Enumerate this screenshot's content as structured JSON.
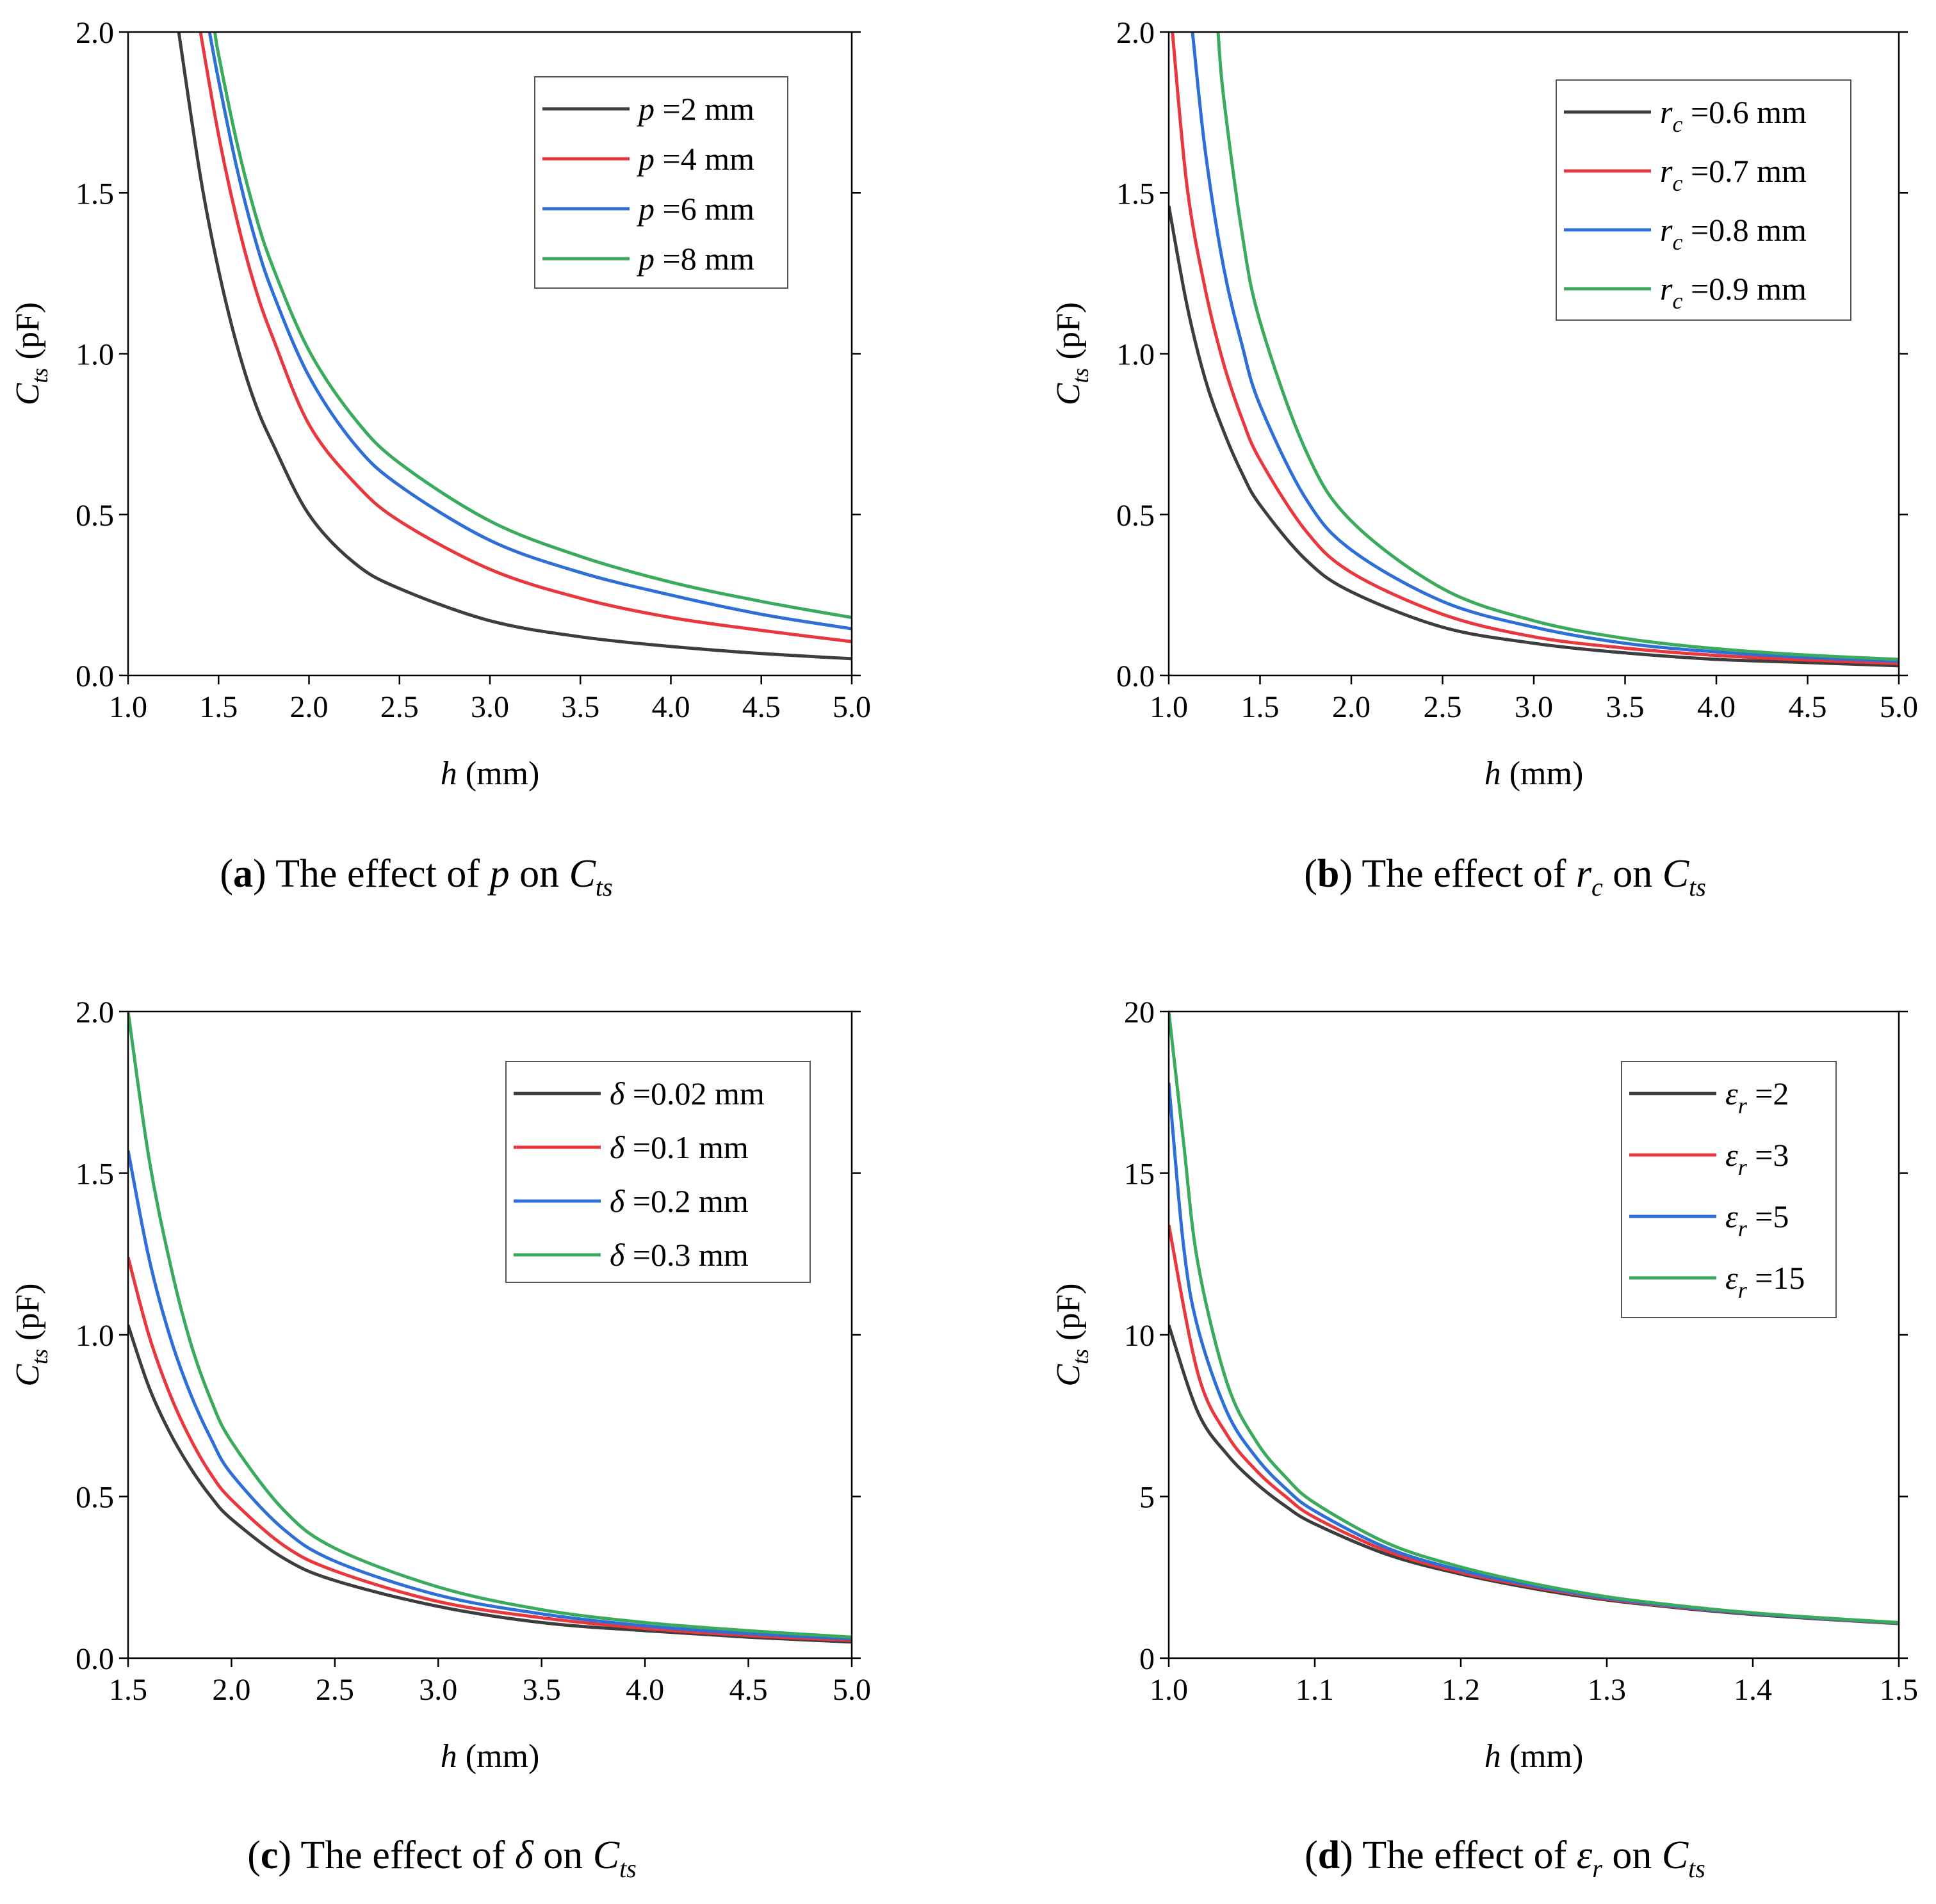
{
  "panels": [
    {
      "id": "a",
      "type": "line",
      "x_range": [
        1.0,
        5.0
      ],
      "y_range": [
        0,
        2.0
      ],
      "x_ticks": [
        "1.0",
        "1.5",
        "2.0",
        "2.5",
        "3.0",
        "3.5",
        "4.0",
        "4.5",
        "5.0"
      ],
      "y_ticks": [
        "0.0",
        "0.5",
        "1.0",
        "1.5",
        "2.0"
      ],
      "x_tick_values": [
        1.0,
        1.5,
        2.0,
        2.5,
        3.0,
        3.5,
        4.0,
        4.5,
        5.0
      ],
      "y_tick_values": [
        0,
        0.5,
        1.0,
        1.5,
        2.0
      ],
      "xlabel": {
        "var": "h",
        "unit": "(mm)"
      },
      "ylabel": {
        "var": "C",
        "sub": "ts",
        "unit": "(pF)"
      },
      "legend": {
        "position": "top-right",
        "entries": [
          {
            "var": "p",
            "sub": "",
            "value": "=2 mm",
            "color": "#3d3d3d"
          },
          {
            "var": "p",
            "sub": "",
            "value": "=4 mm",
            "color": "#e8383d"
          },
          {
            "var": "p",
            "sub": "",
            "value": "=6 mm",
            "color": "#2d6fd6"
          },
          {
            "var": "p",
            "sub": "",
            "value": "=8 mm",
            "color": "#3aaa5c"
          }
        ]
      },
      "series": [
        {
          "name": "p =2 mm",
          "x": [
            1.28,
            1.4,
            1.5,
            1.6,
            1.7,
            1.8,
            2.0,
            2.25,
            2.5,
            3.0,
            3.5,
            4.0,
            4.5,
            5.0
          ],
          "y": [
            2.0,
            1.55,
            1.26,
            1.03,
            0.85,
            0.72,
            0.5,
            0.35,
            0.27,
            0.17,
            0.12,
            0.09,
            0.068,
            0.052
          ]
        },
        {
          "name": "p =4 mm",
          "x": [
            1.4,
            1.5,
            1.6,
            1.7,
            1.8,
            2.0,
            2.25,
            2.5,
            3.0,
            3.5,
            4.0,
            4.5,
            5.0
          ],
          "y": [
            2.0,
            1.68,
            1.42,
            1.21,
            1.05,
            0.78,
            0.6,
            0.48,
            0.33,
            0.24,
            0.18,
            0.14,
            0.105
          ]
        },
        {
          "name": "p =6 mm",
          "x": [
            1.45,
            1.5,
            1.6,
            1.7,
            1.8,
            2.0,
            2.25,
            2.5,
            3.0,
            3.5,
            4.0,
            4.5,
            5.0
          ],
          "y": [
            2.0,
            1.85,
            1.58,
            1.36,
            1.19,
            0.93,
            0.72,
            0.59,
            0.42,
            0.32,
            0.25,
            0.19,
            0.145
          ]
        },
        {
          "name": "p =8 mm",
          "x": [
            1.48,
            1.5,
            1.6,
            1.7,
            1.8,
            2.0,
            2.25,
            2.5,
            3.0,
            3.5,
            4.0,
            4.5,
            5.0
          ],
          "y": [
            2.0,
            1.93,
            1.66,
            1.44,
            1.27,
            1.01,
            0.8,
            0.66,
            0.48,
            0.37,
            0.29,
            0.23,
            0.18
          ]
        }
      ],
      "caption": {
        "label": "a",
        "text": "The effect of",
        "var": "p",
        "on": "on",
        "target": "C",
        "target_sub": "ts"
      }
    },
    {
      "id": "b",
      "type": "line",
      "x_range": [
        1.0,
        5.0
      ],
      "y_range": [
        0,
        2.0
      ],
      "x_ticks": [
        "1.0",
        "1.5",
        "2.0",
        "2.5",
        "3.0",
        "3.5",
        "4.0",
        "4.5",
        "5.0"
      ],
      "y_ticks": [
        "0.0",
        "0.5",
        "1.0",
        "1.5",
        "2.0"
      ],
      "x_tick_values": [
        1.0,
        1.5,
        2.0,
        2.5,
        3.0,
        3.5,
        4.0,
        4.5,
        5.0
      ],
      "y_tick_values": [
        0,
        0.5,
        1.0,
        1.5,
        2.0
      ],
      "xlabel": {
        "var": "h",
        "unit": "(mm)"
      },
      "ylabel": {
        "var": "C",
        "sub": "ts",
        "unit": "(pF)"
      },
      "legend": {
        "position": "top-right",
        "entries": [
          {
            "var": "r",
            "sub": "c",
            "value": "=0.6 mm",
            "color": "#3d3d3d"
          },
          {
            "var": "r",
            "sub": "c",
            "value": "=0.7 mm",
            "color": "#e8383d"
          },
          {
            "var": "r",
            "sub": "c",
            "value": "=0.8 mm",
            "color": "#2d6fd6"
          },
          {
            "var": "r",
            "sub": "c",
            "value": "=0.9 mm",
            "color": "#3aaa5c"
          }
        ]
      },
      "series": [
        {
          "name": "rc =0.6 mm",
          "x": [
            1.0,
            1.1,
            1.2,
            1.3,
            1.4,
            1.5,
            1.75,
            2.0,
            2.5,
            3.0,
            3.5,
            4.0,
            4.5,
            5.0
          ],
          "y": [
            1.46,
            1.15,
            0.92,
            0.76,
            0.63,
            0.53,
            0.36,
            0.26,
            0.15,
            0.1,
            0.07,
            0.05,
            0.04,
            0.03
          ]
        },
        {
          "name": "rc =0.7 mm",
          "x": [
            1.02,
            1.1,
            1.2,
            1.3,
            1.4,
            1.5,
            1.75,
            2.0,
            2.5,
            3.0,
            3.5,
            4.0,
            4.5,
            5.0
          ],
          "y": [
            2.0,
            1.52,
            1.2,
            0.97,
            0.8,
            0.67,
            0.45,
            0.32,
            0.19,
            0.12,
            0.085,
            0.062,
            0.048,
            0.037
          ]
        },
        {
          "name": "rc =0.8 mm",
          "x": [
            1.13,
            1.2,
            1.3,
            1.4,
            1.5,
            1.75,
            2.0,
            2.5,
            3.0,
            3.5,
            4.0,
            4.5,
            5.0
          ],
          "y": [
            2.0,
            1.63,
            1.27,
            1.03,
            0.84,
            0.55,
            0.39,
            0.23,
            0.15,
            0.1,
            0.073,
            0.056,
            0.044
          ]
        },
        {
          "name": "rc =0.9 mm",
          "x": [
            1.27,
            1.3,
            1.4,
            1.5,
            1.75,
            2.0,
            2.5,
            3.0,
            3.5,
            4.0,
            4.5,
            5.0
          ],
          "y": [
            2.0,
            1.8,
            1.38,
            1.1,
            0.7,
            0.48,
            0.27,
            0.17,
            0.115,
            0.083,
            0.063,
            0.05
          ]
        }
      ],
      "caption": {
        "label": "b",
        "text": "The effect of",
        "var": "r",
        "var_sub": "c",
        "on": "on",
        "target": "C",
        "target_sub": "ts"
      }
    },
    {
      "id": "c",
      "type": "line",
      "x_range": [
        1.5,
        5.0
      ],
      "y_range": [
        0,
        2.0
      ],
      "x_ticks": [
        "1.5",
        "2.0",
        "2.5",
        "3.0",
        "3.5",
        "4.0",
        "4.5",
        "5.0"
      ],
      "y_ticks": [
        "0.0",
        "0.5",
        "1.0",
        "1.5",
        "2.0"
      ],
      "x_tick_values": [
        1.5,
        2.0,
        2.5,
        3.0,
        3.5,
        4.0,
        4.5,
        5.0
      ],
      "y_tick_values": [
        0,
        0.5,
        1.0,
        1.5,
        2.0
      ],
      "xlabel": {
        "var": "h",
        "unit": "(mm)"
      },
      "ylabel": {
        "var": "C",
        "sub": "ts",
        "unit": "(pF)"
      },
      "legend": {
        "position": "top-right",
        "entries": [
          {
            "var": "δ",
            "sub": "",
            "value": "=0.02 mm",
            "color": "#3d3d3d"
          },
          {
            "var": "δ",
            "sub": "",
            "value": "=0.1 mm",
            "color": "#e8383d"
          },
          {
            "var": "δ",
            "sub": "",
            "value": "=0.2 mm",
            "color": "#2d6fd6"
          },
          {
            "var": "δ",
            "sub": "",
            "value": "=0.3 mm",
            "color": "#3aaa5c"
          }
        ]
      },
      "series": [
        {
          "name": "δ=0.02 mm",
          "x": [
            1.5,
            1.6,
            1.7,
            1.8,
            1.9,
            2.0,
            2.25,
            2.5,
            3.0,
            3.5,
            4.0,
            4.5,
            5.0
          ],
          "y": [
            1.03,
            0.84,
            0.7,
            0.59,
            0.5,
            0.43,
            0.31,
            0.24,
            0.16,
            0.11,
            0.085,
            0.065,
            0.05
          ]
        },
        {
          "name": "δ=0.1 mm",
          "x": [
            1.5,
            1.6,
            1.7,
            1.8,
            1.9,
            2.0,
            2.25,
            2.5,
            3.0,
            3.5,
            4.0,
            4.5,
            5.0
          ],
          "y": [
            1.24,
            1.0,
            0.82,
            0.68,
            0.57,
            0.49,
            0.35,
            0.27,
            0.175,
            0.125,
            0.092,
            0.07,
            0.055
          ]
        },
        {
          "name": "δ=0.2 mm",
          "x": [
            1.5,
            1.6,
            1.7,
            1.8,
            1.9,
            2.0,
            2.25,
            2.5,
            3.0,
            3.5,
            4.0,
            4.5,
            5.0
          ],
          "y": [
            1.57,
            1.24,
            1.0,
            0.82,
            0.68,
            0.57,
            0.4,
            0.3,
            0.195,
            0.137,
            0.1,
            0.076,
            0.06
          ]
        },
        {
          "name": "δ=0.3 mm",
          "x": [
            1.5,
            1.6,
            1.7,
            1.8,
            1.9,
            2.0,
            2.25,
            2.5,
            3.0,
            3.5,
            4.0,
            4.5,
            5.0
          ],
          "y": [
            2.0,
            1.55,
            1.23,
            0.98,
            0.8,
            0.67,
            0.46,
            0.34,
            0.22,
            0.15,
            0.11,
            0.085,
            0.065
          ]
        }
      ],
      "caption": {
        "label": "c",
        "text": "The effect of",
        "var": "δ",
        "on": "on",
        "target": "C",
        "target_sub": "ts"
      }
    },
    {
      "id": "d",
      "type": "line",
      "x_range": [
        1.0,
        1.5
      ],
      "y_range": [
        0,
        20
      ],
      "x_ticks": [
        "1.0",
        "1.1",
        "1.2",
        "1.3",
        "1.4",
        "1.5"
      ],
      "y_ticks": [
        "0",
        "5",
        "10",
        "15",
        "20"
      ],
      "x_tick_values": [
        1.0,
        1.1,
        1.2,
        1.3,
        1.4,
        1.5
      ],
      "y_tick_values": [
        0,
        5,
        10,
        15,
        20
      ],
      "xlabel": {
        "var": "h",
        "unit": "(mm)"
      },
      "ylabel": {
        "var": "C",
        "sub": "ts",
        "unit": "(pF)"
      },
      "legend": {
        "position": "top-right",
        "entries": [
          {
            "var": "ε",
            "sub": "r",
            "value": "=2",
            "color": "#3d3d3d"
          },
          {
            "var": "ε",
            "sub": "r",
            "value": "=3",
            "color": "#e8383d"
          },
          {
            "var": "ε",
            "sub": "r",
            "value": "=5",
            "color": "#2d6fd6"
          },
          {
            "var": "ε",
            "sub": "r",
            "value": "=15",
            "color": "#3aaa5c"
          }
        ]
      },
      "series": [
        {
          "name": "εr =2",
          "x": [
            1.0,
            1.02,
            1.04,
            1.06,
            1.08,
            1.1,
            1.15,
            1.2,
            1.25,
            1.3,
            1.35,
            1.4,
            1.45,
            1.5
          ],
          "y": [
            10.3,
            7.6,
            6.3,
            5.4,
            4.7,
            4.15,
            3.2,
            2.6,
            2.15,
            1.8,
            1.55,
            1.35,
            1.2,
            1.07
          ]
        },
        {
          "name": "εr =3",
          "x": [
            1.0,
            1.02,
            1.04,
            1.06,
            1.08,
            1.1,
            1.15,
            1.2,
            1.25,
            1.3,
            1.35,
            1.4,
            1.45,
            1.5
          ],
          "y": [
            13.4,
            8.8,
            6.9,
            5.8,
            5.0,
            4.35,
            3.3,
            2.65,
            2.2,
            1.83,
            1.57,
            1.37,
            1.21,
            1.08
          ]
        },
        {
          "name": "εr =5",
          "x": [
            1.0,
            1.01,
            1.02,
            1.04,
            1.06,
            1.08,
            1.1,
            1.15,
            1.2,
            1.25,
            1.3,
            1.35,
            1.4,
            1.45,
            1.5
          ],
          "y": [
            17.8,
            12.8,
            10.2,
            7.6,
            6.2,
            5.25,
            4.55,
            3.4,
            2.72,
            2.24,
            1.86,
            1.59,
            1.38,
            1.22,
            1.09
          ]
        },
        {
          "name": "εr =15",
          "x": [
            1.0,
            1.01,
            1.02,
            1.04,
            1.06,
            1.08,
            1.1,
            1.15,
            1.2,
            1.25,
            1.3,
            1.35,
            1.4,
            1.45,
            1.5
          ],
          "y": [
            20,
            16.0,
            12.2,
            8.5,
            6.7,
            5.6,
            4.8,
            3.55,
            2.82,
            2.3,
            1.9,
            1.62,
            1.4,
            1.24,
            1.1
          ]
        }
      ],
      "caption": {
        "label": "d",
        "text": "The effect of",
        "var": "ε",
        "var_sub": "r",
        "on": "on",
        "target": "C",
        "target_sub": "ts"
      }
    }
  ]
}
